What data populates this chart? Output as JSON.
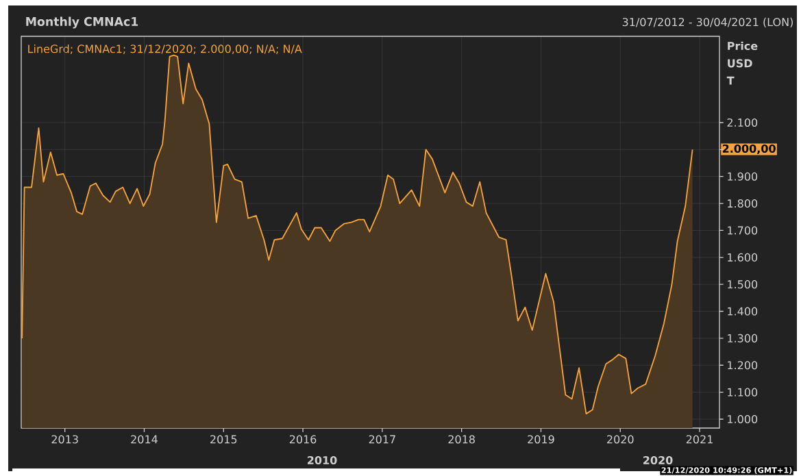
{
  "chart_data": {
    "type": "area",
    "title": "Monthly CMNAc1",
    "ylabel": "Price USD T",
    "annotations": [
      "LineGrd; CMNAc1; 31/12/2020; 2.000,00; N/A; N/A",
      "31/07/2012 - 30/04/2021 (LON)",
      "2010",
      "2020",
      "21/12/2020 10:49:26 (GMT+1)",
      "2.000,00"
    ],
    "x": [
      2012.46,
      2012.49,
      2012.58,
      2012.67,
      2012.73,
      2012.82,
      2012.9,
      2012.98,
      2013.08,
      2013.15,
      2013.22,
      2013.32,
      2013.39,
      2013.48,
      2013.57,
      2013.64,
      2013.73,
      2013.82,
      2013.91,
      2013.99,
      2014.07,
      2014.14,
      2014.23,
      2014.26,
      2014.32,
      2014.37,
      2014.42,
      2014.49,
      2014.56,
      2014.65,
      2014.73,
      2014.82,
      2014.85,
      2014.91,
      2015.0,
      2015.05,
      2015.14,
      2015.23,
      2015.31,
      2015.41,
      2015.51,
      2015.57,
      2015.64,
      2015.74,
      2015.92,
      2015.98,
      2016.07,
      2016.15,
      2016.23,
      2016.34,
      2016.41,
      2016.52,
      2016.61,
      2016.7,
      2016.77,
      2016.84,
      2016.98,
      2017.07,
      2017.14,
      2017.22,
      2017.37,
      2017.47,
      2017.55,
      2017.63,
      2017.79,
      2017.89,
      2017.97,
      2018.06,
      2018.14,
      2018.23,
      2018.31,
      2018.47,
      2018.56,
      2018.63,
      2018.71,
      2018.8,
      2018.89,
      2019.06,
      2019.16,
      2019.31,
      2019.39,
      2019.48,
      2019.57,
      2019.65,
      2019.72,
      2019.82,
      2019.9,
      2019.98,
      2020.07,
      2020.14,
      2020.22,
      2020.32,
      2020.44,
      2020.55,
      2020.65,
      2020.72,
      2020.82,
      2020.91
    ],
    "series": [
      {
        "color": "#f5a33a",
        "values": [
          1300,
          1860,
          1860,
          2080,
          1880,
          1990,
          1905,
          1910,
          1840,
          1770,
          1760,
          1865,
          1875,
          1830,
          1805,
          1845,
          1860,
          1800,
          1855,
          1790,
          1835,
          1950,
          2020,
          2105,
          2345,
          2350,
          2345,
          2170,
          2320,
          2225,
          2185,
          2095,
          1970,
          1730,
          1940,
          1945,
          1890,
          1880,
          1745,
          1755,
          1665,
          1590,
          1665,
          1670,
          1765,
          1705,
          1665,
          1710,
          1710,
          1660,
          1700,
          1725,
          1730,
          1740,
          1740,
          1695,
          1790,
          1905,
          1890,
          1800,
          1850,
          1790,
          2000,
          1965,
          1840,
          1915,
          1875,
          1805,
          1790,
          1880,
          1765,
          1675,
          1665,
          1530,
          1365,
          1415,
          1330,
          1540,
          1435,
          1090,
          1075,
          1190,
          1020,
          1035,
          1120,
          1205,
          1220,
          1240,
          1225,
          1095,
          1115,
          1130,
          1235,
          1355,
          1500,
          1660,
          1790,
          2000
        ]
      }
    ],
    "xlim": [
      2012.45,
      2021.25
    ],
    "ylim": [
      967,
      2420
    ],
    "xticks": [
      2013,
      2014,
      2015,
      2016,
      2017,
      2018,
      2019,
      2020,
      2021
    ],
    "yticks": [
      {
        "value": 1000,
        "label": "1.000"
      },
      {
        "value": 1100,
        "label": "1.100"
      },
      {
        "value": 1200,
        "label": "1.200"
      },
      {
        "value": 1300,
        "label": "1.300"
      },
      {
        "value": 1400,
        "label": "1.400"
      },
      {
        "value": 1500,
        "label": "1.500"
      },
      {
        "value": 1600,
        "label": "1.600"
      },
      {
        "value": 1700,
        "label": "1.700"
      },
      {
        "value": 1800,
        "label": "1.800"
      },
      {
        "value": 1900,
        "label": "1.900"
      },
      {
        "value": 2000,
        "label": null
      },
      {
        "value": 2100,
        "label": "2.100"
      }
    ],
    "grid": true
  }
}
